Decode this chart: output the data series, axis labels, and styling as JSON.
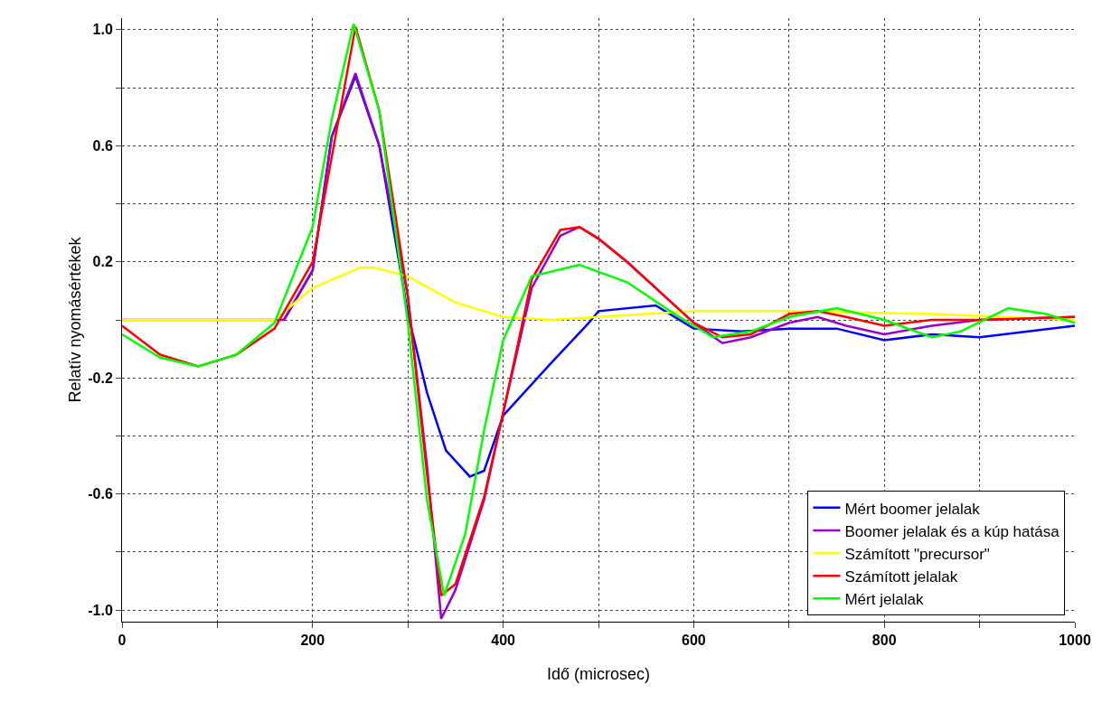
{
  "chart_data": {
    "type": "line",
    "xlabel": "Idő (microsec)",
    "ylabel": "Relatív nyomásértékek",
    "xlim": [
      0,
      1000
    ],
    "ylim": [
      -1.04,
      1.04
    ],
    "xticks": [
      0,
      {
        "value": 100,
        "label": null
      },
      200,
      {
        "value": 300,
        "label": null
      },
      400,
      {
        "value": 500,
        "label": null
      },
      600,
      {
        "value": 700,
        "label": null
      },
      800,
      {
        "value": 900,
        "label": null
      },
      1000
    ],
    "yticks": [
      {
        "value": -1,
        "label": "-1.0"
      },
      {
        "value": -0.8,
        "label": null
      },
      {
        "value": -0.6,
        "label": "-0.6"
      },
      {
        "value": -0.4,
        "label": null
      },
      {
        "value": -0.2,
        "label": "-0.2"
      },
      {
        "value": 0,
        "label": null
      },
      {
        "value": 0.2,
        "label": "0.2"
      },
      {
        "value": 0.4,
        "label": null
      },
      {
        "value": 0.6,
        "label": "0.6"
      },
      {
        "value": 0.8,
        "label": null
      },
      {
        "value": 1,
        "label": "1.0"
      }
    ],
    "grid": true,
    "legend": "bottom right",
    "marker": "none",
    "line_style": "solid",
    "series": [
      {
        "name": "Mért boomer jelalak",
        "color": "#0000ff",
        "x": [
          170,
          200,
          220,
          245,
          270,
          300,
          320,
          340,
          365,
          380,
          400,
          450,
          490,
          500,
          560,
          600,
          650,
          700,
          750,
          800,
          850,
          900,
          1000
        ],
        "values": [
          0,
          0.17,
          0.63,
          0.84,
          0.6,
          0.02,
          -0.25,
          -0.45,
          -0.54,
          -0.52,
          -0.33,
          -0.15,
          -0.01,
          0.03,
          0.05,
          -0.03,
          -0.04,
          -0.03,
          -0.03,
          -0.07,
          -0.05,
          -0.06,
          -0.02
        ]
      },
      {
        "name": "Boomer jelalak és a kúp hatása",
        "color": "#9900cc",
        "x": [
          0,
          100,
          170,
          200,
          220,
          245,
          270,
          300,
          320,
          335,
          350,
          380,
          400,
          430,
          460,
          480,
          500,
          530,
          560,
          600,
          630,
          660,
          700,
          730,
          760,
          800,
          850,
          900,
          1000
        ],
        "values": [
          0,
          0,
          0,
          0.17,
          0.63,
          0.85,
          0.6,
          0.08,
          -0.5,
          -1.03,
          -0.93,
          -0.62,
          -0.32,
          0.11,
          0.29,
          0.32,
          0.28,
          0.2,
          0.11,
          -0.01,
          -0.08,
          -0.06,
          -0.01,
          0.01,
          -0.02,
          -0.05,
          -0.02,
          0,
          0.01
        ]
      },
      {
        "name": "Számított \"precursor\"",
        "color": "#ffff00",
        "x": [
          0,
          100,
          160,
          200,
          250,
          265,
          300,
          350,
          400,
          450,
          500,
          600,
          700,
          850,
          1000
        ],
        "values": [
          0,
          0,
          0,
          0.11,
          0.18,
          0.18,
          0.15,
          0.06,
          0.01,
          0,
          0.01,
          0.03,
          0.03,
          0.02,
          0
        ]
      },
      {
        "name": "Számított jelalak",
        "color": "#ff0000",
        "x": [
          0,
          40,
          80,
          120,
          160,
          200,
          220,
          245,
          270,
          300,
          320,
          335,
          350,
          380,
          400,
          430,
          460,
          480,
          500,
          530,
          560,
          600,
          630,
          660,
          700,
          730,
          760,
          800,
          850,
          900,
          1000
        ],
        "values": [
          -0.02,
          -0.12,
          -0.16,
          -0.12,
          -0.03,
          0.2,
          0.56,
          1.01,
          0.72,
          0.08,
          -0.53,
          -0.95,
          -0.91,
          -0.61,
          -0.32,
          0.14,
          0.31,
          0.32,
          0.28,
          0.2,
          0.11,
          -0.01,
          -0.06,
          -0.05,
          0.02,
          0.03,
          0.01,
          -0.02,
          0,
          0,
          0.01
        ]
      },
      {
        "name": "Mért jelalak",
        "color": "#00ff00",
        "x": [
          0,
          40,
          80,
          120,
          160,
          200,
          220,
          243,
          270,
          300,
          320,
          338,
          360,
          380,
          400,
          430,
          480,
          530,
          580,
          620,
          660,
          700,
          750,
          800,
          850,
          880,
          930,
          970,
          1000
        ],
        "values": [
          -0.05,
          -0.13,
          -0.16,
          -0.12,
          -0.01,
          0.32,
          0.69,
          1.02,
          0.72,
          -0.01,
          -0.62,
          -0.95,
          -0.74,
          -0.38,
          -0.07,
          0.15,
          0.19,
          0.13,
          0.02,
          -0.06,
          -0.04,
          0.01,
          0.04,
          0,
          -0.06,
          -0.04,
          0.04,
          0.02,
          -0.01
        ]
      }
    ]
  }
}
